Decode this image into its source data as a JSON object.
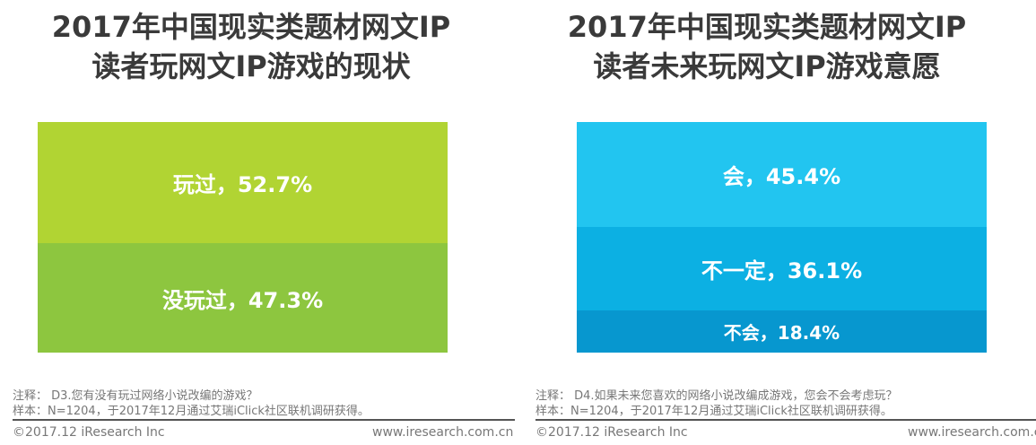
{
  "chart_data": [
    {
      "type": "bar",
      "stacked": true,
      "title": "2017年中国现实类题材网文IP读者玩网文IP游戏的现状",
      "title_lines": [
        "2017年中国现实类题材网文IP",
        "读者玩网文IP游戏的现状"
      ],
      "segments": [
        {
          "label": "玩过，52.7%",
          "name": "玩过",
          "value": 52.7,
          "color": "#b1d433"
        },
        {
          "label": "没玩过，47.3%",
          "name": "没玩过",
          "value": 47.3,
          "color": "#8dc63f"
        }
      ],
      "note": "注释： D3.您有没有玩过网络小说改编的游戏？",
      "sample": "样本：N=1204，于2017年12月通过艾瑞iClick社区联机调研获得。",
      "copyright": "©2017.12 iResearch Inc",
      "site": "www.iresearch.com.cn"
    },
    {
      "type": "bar",
      "stacked": true,
      "title": "2017年中国现实类题材网文IP读者未来玩网文IP游戏意愿",
      "title_lines": [
        "2017年中国现实类题材网文IP",
        "读者未来玩网文IP游戏意愿"
      ],
      "segments": [
        {
          "label": "会，45.4%",
          "name": "会",
          "value": 45.4,
          "color": "#22c5f0"
        },
        {
          "label": "不一定，36.1%",
          "name": "不一定",
          "value": 36.1,
          "color": "#0cb0e3"
        },
        {
          "label": "不会，18.4%",
          "name": "不会",
          "value": 18.4,
          "color": "#0797cf"
        }
      ],
      "note": "注释： D4.如果未来您喜欢的网络小说改编成游戏，您会不会考虑玩？",
      "sample": "样本：N=1204，于2017年12月通过艾瑞iClick社区联机调研获得。",
      "copyright": "©2017.12 iResearch Inc",
      "site": "www.iresearch.com.cn"
    }
  ]
}
